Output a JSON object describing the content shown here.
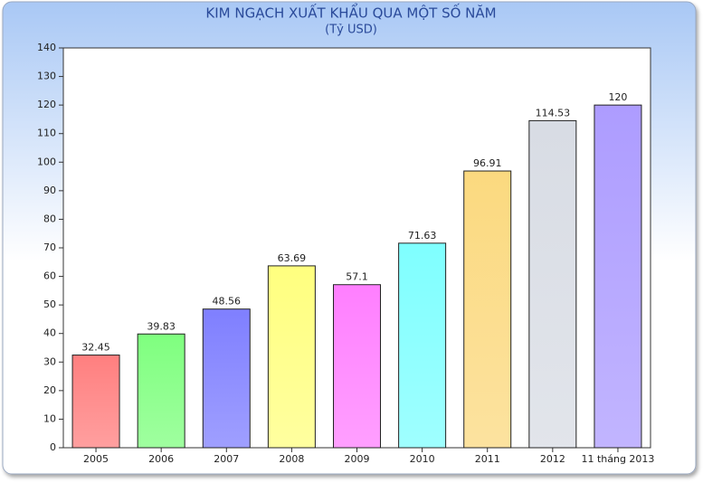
{
  "chart_data": {
    "type": "bar",
    "title": "KIM NGẠCH XUẤT KHẨU QUA MỘT SỐ NĂM",
    "subtitle": "(Tỷ USD)",
    "categories": [
      "2005",
      "2006",
      "2007",
      "2008",
      "2009",
      "2010",
      "2011",
      "2012",
      "11 tháng 2013"
    ],
    "values": [
      32.45,
      39.83,
      48.56,
      63.69,
      57.1,
      71.63,
      96.91,
      114.53,
      120
    ],
    "colors": [
      "#ff7f7f",
      "#7fff7f",
      "#7f7fff",
      "#ffff7f",
      "#ff7fff",
      "#7fffff",
      "#fbd97f",
      "#d8dce4",
      "#ad9cff"
    ],
    "ylim": [
      0,
      140
    ],
    "yticks": [
      0,
      10,
      20,
      30,
      40,
      50,
      60,
      70,
      80,
      90,
      100,
      110,
      120,
      130,
      140
    ],
    "grid": false
  }
}
